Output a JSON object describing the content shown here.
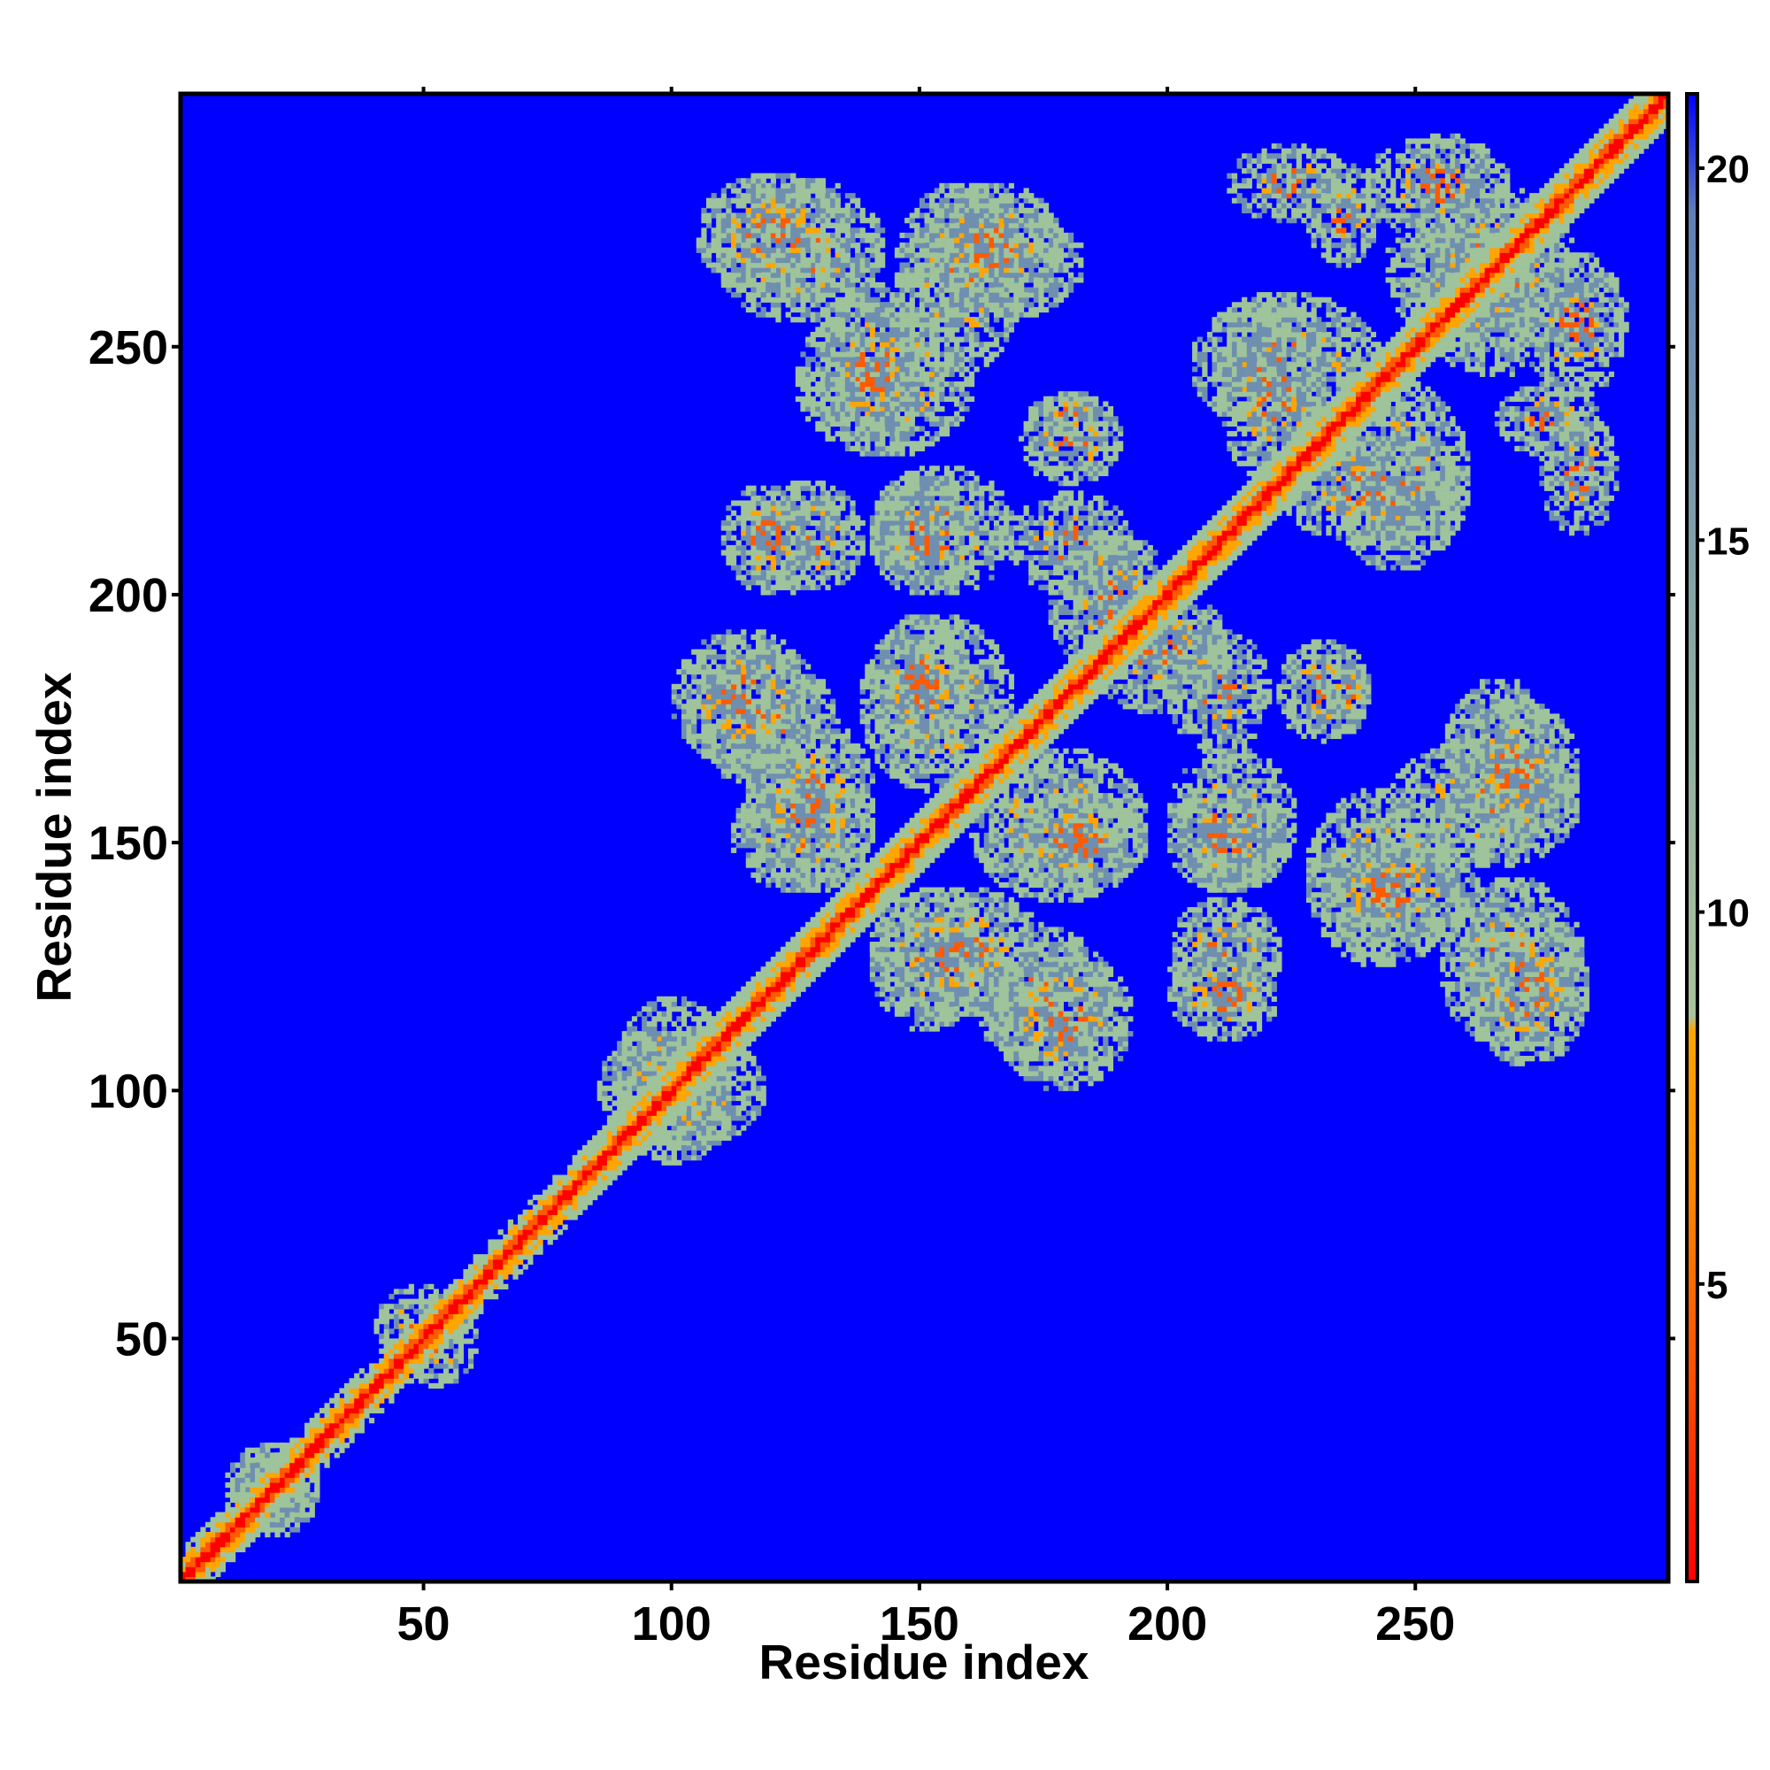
{
  "chart_data": {
    "type": "heatmap",
    "title": "",
    "xlabel": "Residue index",
    "ylabel": "Residue index",
    "xlim": [
      1,
      301
    ],
    "ylim": [
      1,
      301
    ],
    "x_ticks": [
      "50",
      "100",
      "150",
      "200",
      "250"
    ],
    "y_ticks": [
      "50",
      "100",
      "150",
      "200",
      "250"
    ],
    "colorbar": {
      "range": [
        1,
        21
      ],
      "ticks": [
        "5",
        "10",
        "15",
        "20"
      ],
      "colors": [
        "#ff0000",
        "#ff5a00",
        "#ffa500",
        "#9fc39a",
        "#6f8fb0",
        "#0000ff"
      ]
    },
    "background_color": "#0000ff",
    "grid": false,
    "legend": "colorbar-right",
    "features": [
      {
        "kind": "diagonal",
        "from": 1,
        "to": 301
      },
      {
        "kind": "contact_block",
        "x_range": [
          88,
          112
        ],
        "y_range": [
          85,
          118
        ]
      },
      {
        "kind": "contact_block",
        "x_range": [
          40,
          58
        ],
        "y_range": [
          45,
          60
        ]
      },
      {
        "kind": "contact_block",
        "x_range": [
          10,
          28
        ],
        "y_range": [
          12,
          28
        ]
      },
      {
        "kind": "contact_block",
        "x_range": [
          108,
          142
        ],
        "y_range": [
          255,
          283
        ]
      },
      {
        "kind": "contact_block",
        "x_range": [
          146,
          182
        ],
        "y_range": [
          255,
          278
        ]
      },
      {
        "kind": "contact_block",
        "x_range": [
          125,
          160
        ],
        "y_range": [
          228,
          258
        ]
      },
      {
        "kind": "contact_block",
        "x_range": [
          140,
          168
        ],
        "y_range": [
          200,
          225
        ]
      },
      {
        "kind": "contact_block",
        "x_range": [
          116,
          138
        ],
        "y_range": [
          200,
          222
        ]
      },
      {
        "kind": "contact_block",
        "x_range": [
          170,
          190
        ],
        "y_range": [
          222,
          240
        ]
      },
      {
        "kind": "contact_block",
        "x_range": [
          106,
          132
        ],
        "y_range": [
          160,
          188
        ]
      },
      {
        "kind": "contact_block",
        "x_range": [
          138,
          168
        ],
        "y_range": [
          160,
          195
        ]
      },
      {
        "kind": "contact_block",
        "x_range": [
          168,
          192
        ],
        "y_range": [
          200,
          220
        ]
      },
      {
        "kind": "contact_block",
        "x_range": [
          184,
          212
        ],
        "y_range": [
          176,
          200
        ]
      },
      {
        "kind": "contact_block",
        "x_range": [
          168,
          195
        ],
        "y_range": [
          140,
          160
        ]
      },
      {
        "kind": "contact_block",
        "x_range": [
          112,
          140
        ],
        "y_range": [
          140,
          162
        ]
      },
      {
        "kind": "contact_block",
        "x_range": [
          140,
          175
        ],
        "y_range": [
          115,
          140
        ]
      },
      {
        "kind": "contact_block",
        "x_range": [
          165,
          192
        ],
        "y_range": [
          100,
          128
        ]
      },
      {
        "kind": "contact_block",
        "x_range": [
          200,
          222
        ],
        "y_range": [
          140,
          160
        ]
      },
      {
        "kind": "contact_block",
        "x_range": [
          200,
          222
        ],
        "y_range": [
          110,
          128
        ]
      },
      {
        "kind": "contact_block",
        "x_range": [
          228,
          262
        ],
        "y_range": [
          130,
          150
        ]
      },
      {
        "kind": "contact_block",
        "x_range": [
          245,
          282
        ],
        "y_range": [
          145,
          170
        ]
      },
      {
        "kind": "contact_block",
        "x_range": [
          258,
          282
        ],
        "y_range": [
          150,
          178
        ]
      },
      {
        "kind": "contact_block",
        "x_range": [
          260,
          284
        ],
        "y_range": [
          105,
          135
        ]
      },
      {
        "kind": "contact_block",
        "x_range": [
          205,
          242
        ],
        "y_range": [
          232,
          260
        ]
      },
      {
        "kind": "contact_block",
        "x_range": [
          222,
          260
        ],
        "y_range": [
          210,
          232
        ]
      },
      {
        "kind": "contact_block",
        "x_range": [
          244,
          282
        ],
        "y_range": [
          250,
          280
        ]
      },
      {
        "kind": "contact_block",
        "x_range": [
          266,
          286
        ],
        "y_range": [
          228,
          242
        ]
      },
      {
        "kind": "contact_block",
        "x_range": [
          212,
          236
        ],
        "y_range": [
          275,
          290
        ]
      },
      {
        "kind": "contact_block",
        "x_range": [
          240,
          268
        ],
        "y_range": [
          272,
          292
        ]
      },
      {
        "kind": "contact_block",
        "x_range": [
          172,
          188
        ],
        "y_range": [
          232,
          240
        ]
      }
    ]
  }
}
